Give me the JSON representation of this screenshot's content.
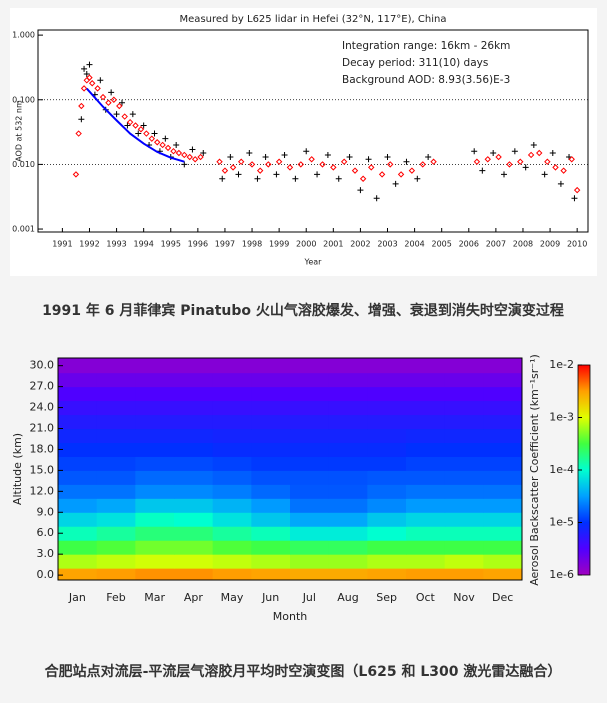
{
  "chart_data": [
    {
      "type": "scatter",
      "title": "Measured by L625 lidar in Hefei (32°N, 117°E), China",
      "annotations": [
        "Integration range: 16km - 26km",
        "Decay period: 311(10) days",
        "Background AOD: 8.93(3.56)E-3"
      ],
      "xlabel": "Year",
      "ylabel": "AOD at 532 nm",
      "xlim": [
        1990.1,
        2010.4
      ],
      "ylim": [
        0.0009,
        1.2
      ],
      "ylog": true,
      "xticks": [
        1991,
        1992,
        1993,
        1994,
        1995,
        1996,
        1997,
        1998,
        1999,
        2000,
        2001,
        2002,
        2003,
        2004,
        2005,
        2006,
        2007,
        2008,
        2009,
        2010
      ],
      "yticks": [
        0.001,
        {
          "value": 0.01,
          "label": "0.010"
        },
        {
          "value": 0.1,
          "label": "0.100"
        },
        {
          "value": 1,
          "label": "1.000"
        }
      ],
      "hlines": [
        0.1,
        0.01
      ],
      "caption": "1991 年 6 月菲律宾 Pinatubo 火山气溶胶爆发、增强、衰退到消失时空演变过程",
      "series": [
        {
          "style": "cross",
          "color": "#000000",
          "x": [
            1991.7,
            1991.8,
            1991.9,
            1992.0,
            1992.2,
            1992.4,
            1992.6,
            1992.8,
            1993.0,
            1993.2,
            1993.4,
            1993.6,
            1993.8,
            1994.0,
            1994.2,
            1994.4,
            1994.6,
            1994.8,
            1995.0,
            1995.2,
            1995.5,
            1995.8,
            1996.2,
            1996.9,
            1997.2,
            1997.5,
            1997.9,
            1998.2,
            1998.5,
            1998.9,
            1999.2,
            1999.6,
            2000.0,
            2000.4,
            2000.8,
            2001.2,
            2001.6,
            2002.0,
            2002.3,
            2002.6,
            2003.0,
            2003.3,
            2003.7,
            2004.1,
            2004.5,
            2006.2,
            2006.5,
            2006.9,
            2007.3,
            2007.7,
            2008.1,
            2008.4,
            2008.8,
            2009.1,
            2009.4,
            2009.7,
            2009.9
          ],
          "values": [
            0.05,
            0.3,
            0.25,
            0.35,
            0.12,
            0.2,
            0.07,
            0.13,
            0.06,
            0.09,
            0.04,
            0.06,
            0.03,
            0.04,
            0.02,
            0.03,
            0.016,
            0.025,
            0.013,
            0.02,
            0.01,
            0.017,
            0.015,
            0.006,
            0.013,
            0.007,
            0.015,
            0.006,
            0.013,
            0.007,
            0.014,
            0.006,
            0.016,
            0.007,
            0.014,
            0.006,
            0.013,
            0.004,
            0.012,
            0.003,
            0.013,
            0.005,
            0.011,
            0.006,
            0.013,
            0.016,
            0.008,
            0.015,
            0.007,
            0.016,
            0.009,
            0.02,
            0.007,
            0.015,
            0.005,
            0.013,
            0.003
          ]
        },
        {
          "style": "diamond",
          "color": "#ff0000",
          "x": [
            1991.5,
            1991.6,
            1991.7,
            1991.8,
            1991.9,
            1992.0,
            1992.1,
            1992.3,
            1992.5,
            1992.7,
            1992.9,
            1993.1,
            1993.3,
            1993.5,
            1993.7,
            1993.9,
            1994.1,
            1994.3,
            1994.5,
            1994.7,
            1994.9,
            1995.1,
            1995.3,
            1995.5,
            1995.7,
            1995.9,
            1996.1,
            1996.8,
            1997.0,
            1997.3,
            1997.6,
            1998.0,
            1998.3,
            1998.6,
            1999.0,
            1999.4,
            1999.8,
            2000.2,
            2000.6,
            2001.0,
            2001.4,
            2001.8,
            2002.1,
            2002.4,
            2002.8,
            2003.1,
            2003.5,
            2003.9,
            2004.3,
            2004.7,
            2006.3,
            2006.7,
            2007.1,
            2007.5,
            2007.9,
            2008.3,
            2008.6,
            2008.9,
            2009.2,
            2009.5,
            2009.8,
            2010.0
          ],
          "values": [
            0.007,
            0.03,
            0.08,
            0.15,
            0.2,
            0.22,
            0.18,
            0.15,
            0.11,
            0.09,
            0.1,
            0.08,
            0.055,
            0.045,
            0.04,
            0.035,
            0.03,
            0.025,
            0.022,
            0.02,
            0.018,
            0.016,
            0.015,
            0.014,
            0.013,
            0.012,
            0.013,
            0.011,
            0.008,
            0.009,
            0.011,
            0.01,
            0.008,
            0.01,
            0.011,
            0.009,
            0.01,
            0.012,
            0.01,
            0.009,
            0.011,
            0.008,
            0.006,
            0.009,
            0.007,
            0.01,
            0.007,
            0.008,
            0.01,
            0.011,
            0.011,
            0.012,
            0.013,
            0.01,
            0.011,
            0.014,
            0.015,
            0.011,
            0.009,
            0.008,
            0.012,
            0.004
          ]
        },
        {
          "style": "line",
          "color": "#0000ff",
          "x": [
            1991.9,
            1992.5,
            1993.0,
            1993.5,
            1994.0,
            1994.5,
            1995.0,
            1995.5
          ],
          "values": [
            0.149,
            0.078,
            0.048,
            0.03,
            0.021,
            0.0156,
            0.0127,
            0.011
          ]
        }
      ]
    },
    {
      "type": "heatmap",
      "xlabel": "Month",
      "ylabel": "Altitude (km)",
      "colorbar_label": "Aerosol Backscatter Coefficient (km⁻¹sr⁻¹)",
      "caption": "合肥站点对流层-平流层气溶胶月平均时空演变图（L625 和 L300 激光雷达融合）",
      "categories": [
        "Jan",
        "Feb",
        "Mar",
        "Apr",
        "May",
        "Jun",
        "Jul",
        "Aug",
        "Sep",
        "Oct",
        "Nov",
        "Dec"
      ],
      "ylim": [
        -0.7,
        31.1
      ],
      "yticks": [
        {
          "value": 0,
          "label": "0.0"
        },
        {
          "value": 3,
          "label": "3.0"
        },
        {
          "value": 6,
          "label": "6.0"
        },
        {
          "value": 9,
          "label": "9.0"
        },
        {
          "value": 12,
          "label": "12.0"
        },
        {
          "value": 15,
          "label": "15.0"
        },
        {
          "value": 18,
          "label": "18.0"
        },
        {
          "value": 21,
          "label": "21.0"
        },
        {
          "value": 24,
          "label": "24.0"
        },
        {
          "value": 27,
          "label": "27.0"
        },
        {
          "value": 30,
          "label": "30.0"
        }
      ],
      "clim": [
        1e-06,
        0.01
      ],
      "clog": true,
      "cticks": [
        {
          "value": 1e-06,
          "label": "1e-6"
        },
        {
          "value": 1e-05,
          "label": "1e-5"
        },
        {
          "value": 0.0001,
          "label": "1e-4"
        },
        {
          "value": 0.001,
          "label": "1e-3"
        },
        {
          "value": 0.01,
          "label": "1e-2"
        }
      ],
      "colormap": [
        "#a000c0",
        "#5000ff",
        "#0030ff",
        "#00a0ff",
        "#00ffd0",
        "#40ff40",
        "#e0ff00",
        "#ffa000",
        "#ff0000"
      ],
      "y": [
        0,
        2,
        4,
        6,
        8,
        10,
        12,
        14,
        16,
        18,
        20,
        22,
        24,
        26,
        28,
        30
      ],
      "z": [
        [
          0.003,
          0.0032,
          0.0035,
          0.0035,
          0.0032,
          0.003,
          0.0028,
          0.0028,
          0.003,
          0.0032,
          0.0032,
          0.003
        ],
        [
          0.0007,
          0.0008,
          0.0009,
          0.0009,
          0.0008,
          0.0007,
          0.0006,
          0.0006,
          0.0007,
          0.0007,
          0.0008,
          0.0007
        ],
        [
          0.0003,
          0.00035,
          0.00045,
          0.00045,
          0.00035,
          0.0003,
          0.00025,
          0.00025,
          0.0003,
          0.0003,
          0.0003,
          0.0003
        ],
        [
          0.00012,
          0.00015,
          0.0002,
          0.0002,
          0.00015,
          0.00012,
          8e-05,
          8e-05,
          0.0001,
          0.00012,
          0.00012,
          0.00012
        ],
        [
          6e-05,
          7e-05,
          0.00011,
          0.0001,
          7e-05,
          5e-05,
          3.5e-05,
          3.5e-05,
          5e-05,
          6e-05,
          6e-05,
          6e-05
        ],
        [
          3e-05,
          3.5e-05,
          5e-05,
          5e-05,
          4e-05,
          3e-05,
          2e-05,
          2e-05,
          2.5e-05,
          3e-05,
          3e-05,
          3e-05
        ],
        [
          2e-05,
          2e-05,
          2.5e-05,
          2.5e-05,
          2.2e-05,
          1.8e-05,
          1.5e-05,
          1.5e-05,
          1.8e-05,
          2e-05,
          2e-05,
          2e-05
        ],
        [
          1.5e-05,
          1.5e-05,
          1.8e-05,
          1.8e-05,
          1.6e-05,
          1.4e-05,
          1.4e-05,
          1.4e-05,
          1.5e-05,
          1.5e-05,
          1.5e-05,
          1.5e-05
        ],
        [
          1.2e-05,
          1.2e-05,
          1.3e-05,
          1.3e-05,
          1.2e-05,
          1.1e-05,
          1.1e-05,
          1.1e-05,
          1.1e-05,
          1.2e-05,
          1.2e-05,
          1.2e-05
        ],
        [
          1e-05,
          1e-05,
          1e-05,
          1e-05,
          9e-06,
          9e-06,
          9e-06,
          9e-06,
          9e-06,
          1e-05,
          1e-05,
          1e-05
        ],
        [
          8e-06,
          8e-06,
          8e-06,
          8e-06,
          7.5e-06,
          7.5e-06,
          7.5e-06,
          7.5e-06,
          7.5e-06,
          8e-06,
          8e-06,
          8e-06
        ],
        [
          6e-06,
          6e-06,
          6e-06,
          6e-06,
          6e-06,
          6e-06,
          6e-06,
          6e-06,
          6e-06,
          6e-06,
          6e-06,
          6e-06
        ],
        [
          4.5e-06,
          4.5e-06,
          4.5e-06,
          4.5e-06,
          4.5e-06,
          4.5e-06,
          4.5e-06,
          4.5e-06,
          4.5e-06,
          4.5e-06,
          4.5e-06,
          4.5e-06
        ],
        [
          3.2e-06,
          3.2e-06,
          3.2e-06,
          3.2e-06,
          3.2e-06,
          3.2e-06,
          3.2e-06,
          3.2e-06,
          3.2e-06,
          3.2e-06,
          3.2e-06,
          3.2e-06
        ],
        [
          2.2e-06,
          2.2e-06,
          2.2e-06,
          2.2e-06,
          2.2e-06,
          2.2e-06,
          2.2e-06,
          2.2e-06,
          2.2e-06,
          2.2e-06,
          2.2e-06,
          2.2e-06
        ],
        [
          1.5e-06,
          1.5e-06,
          1.5e-06,
          1.5e-06,
          1.5e-06,
          1.5e-06,
          1.5e-06,
          1.5e-06,
          1.5e-06,
          1.5e-06,
          1.5e-06,
          1.5e-06
        ]
      ]
    }
  ]
}
